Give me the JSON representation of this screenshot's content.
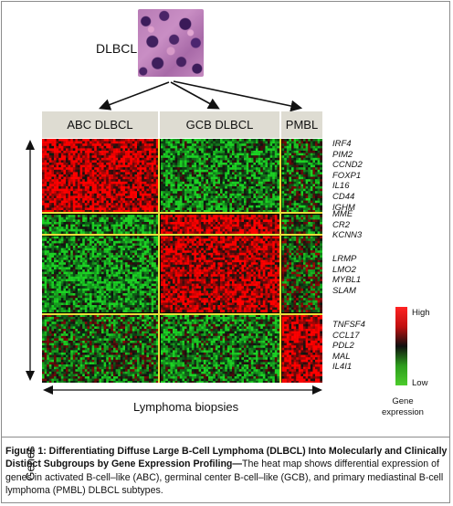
{
  "figure": {
    "specimen_label": "DLBCL",
    "subtypes": [
      "ABC DLBCL",
      "GCB DLBCL",
      "PMBL"
    ],
    "gene_groups": [
      [
        "IRF4",
        "PIM2",
        "CCND2",
        "FOXP1",
        "IL16",
        "CD44",
        "IGHM"
      ],
      [
        "MME",
        "CR2",
        "KCNN3"
      ],
      [
        "LRMP",
        "LMO2",
        "MYBL1",
        "SLAM"
      ],
      [
        "TNFSF4",
        "CCL17",
        "PDL2",
        "MAL",
        "IL4I1"
      ]
    ],
    "y_axis_label": "Genes",
    "x_axis_label": "Lymphoma biopsies",
    "legend": {
      "high": "High",
      "low": "Low",
      "caption_line1": "Gene",
      "caption_line2": "expression"
    },
    "colors": {
      "high": "#ff2222",
      "mid": "#101010",
      "low": "#4ccc2c",
      "divider": "#e8e03a",
      "header_bg": "#dedcd2"
    }
  },
  "caption": {
    "title": "Figure 1: Differentiating Diffuse Large B-Cell Lymphoma (DLBCL) Into Molecularly and Clinically Distinct Subgroups by Gene Expression Profiling",
    "separator": "—",
    "body": "The heat map shows differential expression of genes in activated B-cell–like (ABC), germinal center B-cell–like (GCB), and primary mediastinal B-cell lymphoma (PMBL) DLBCL subtypes."
  }
}
